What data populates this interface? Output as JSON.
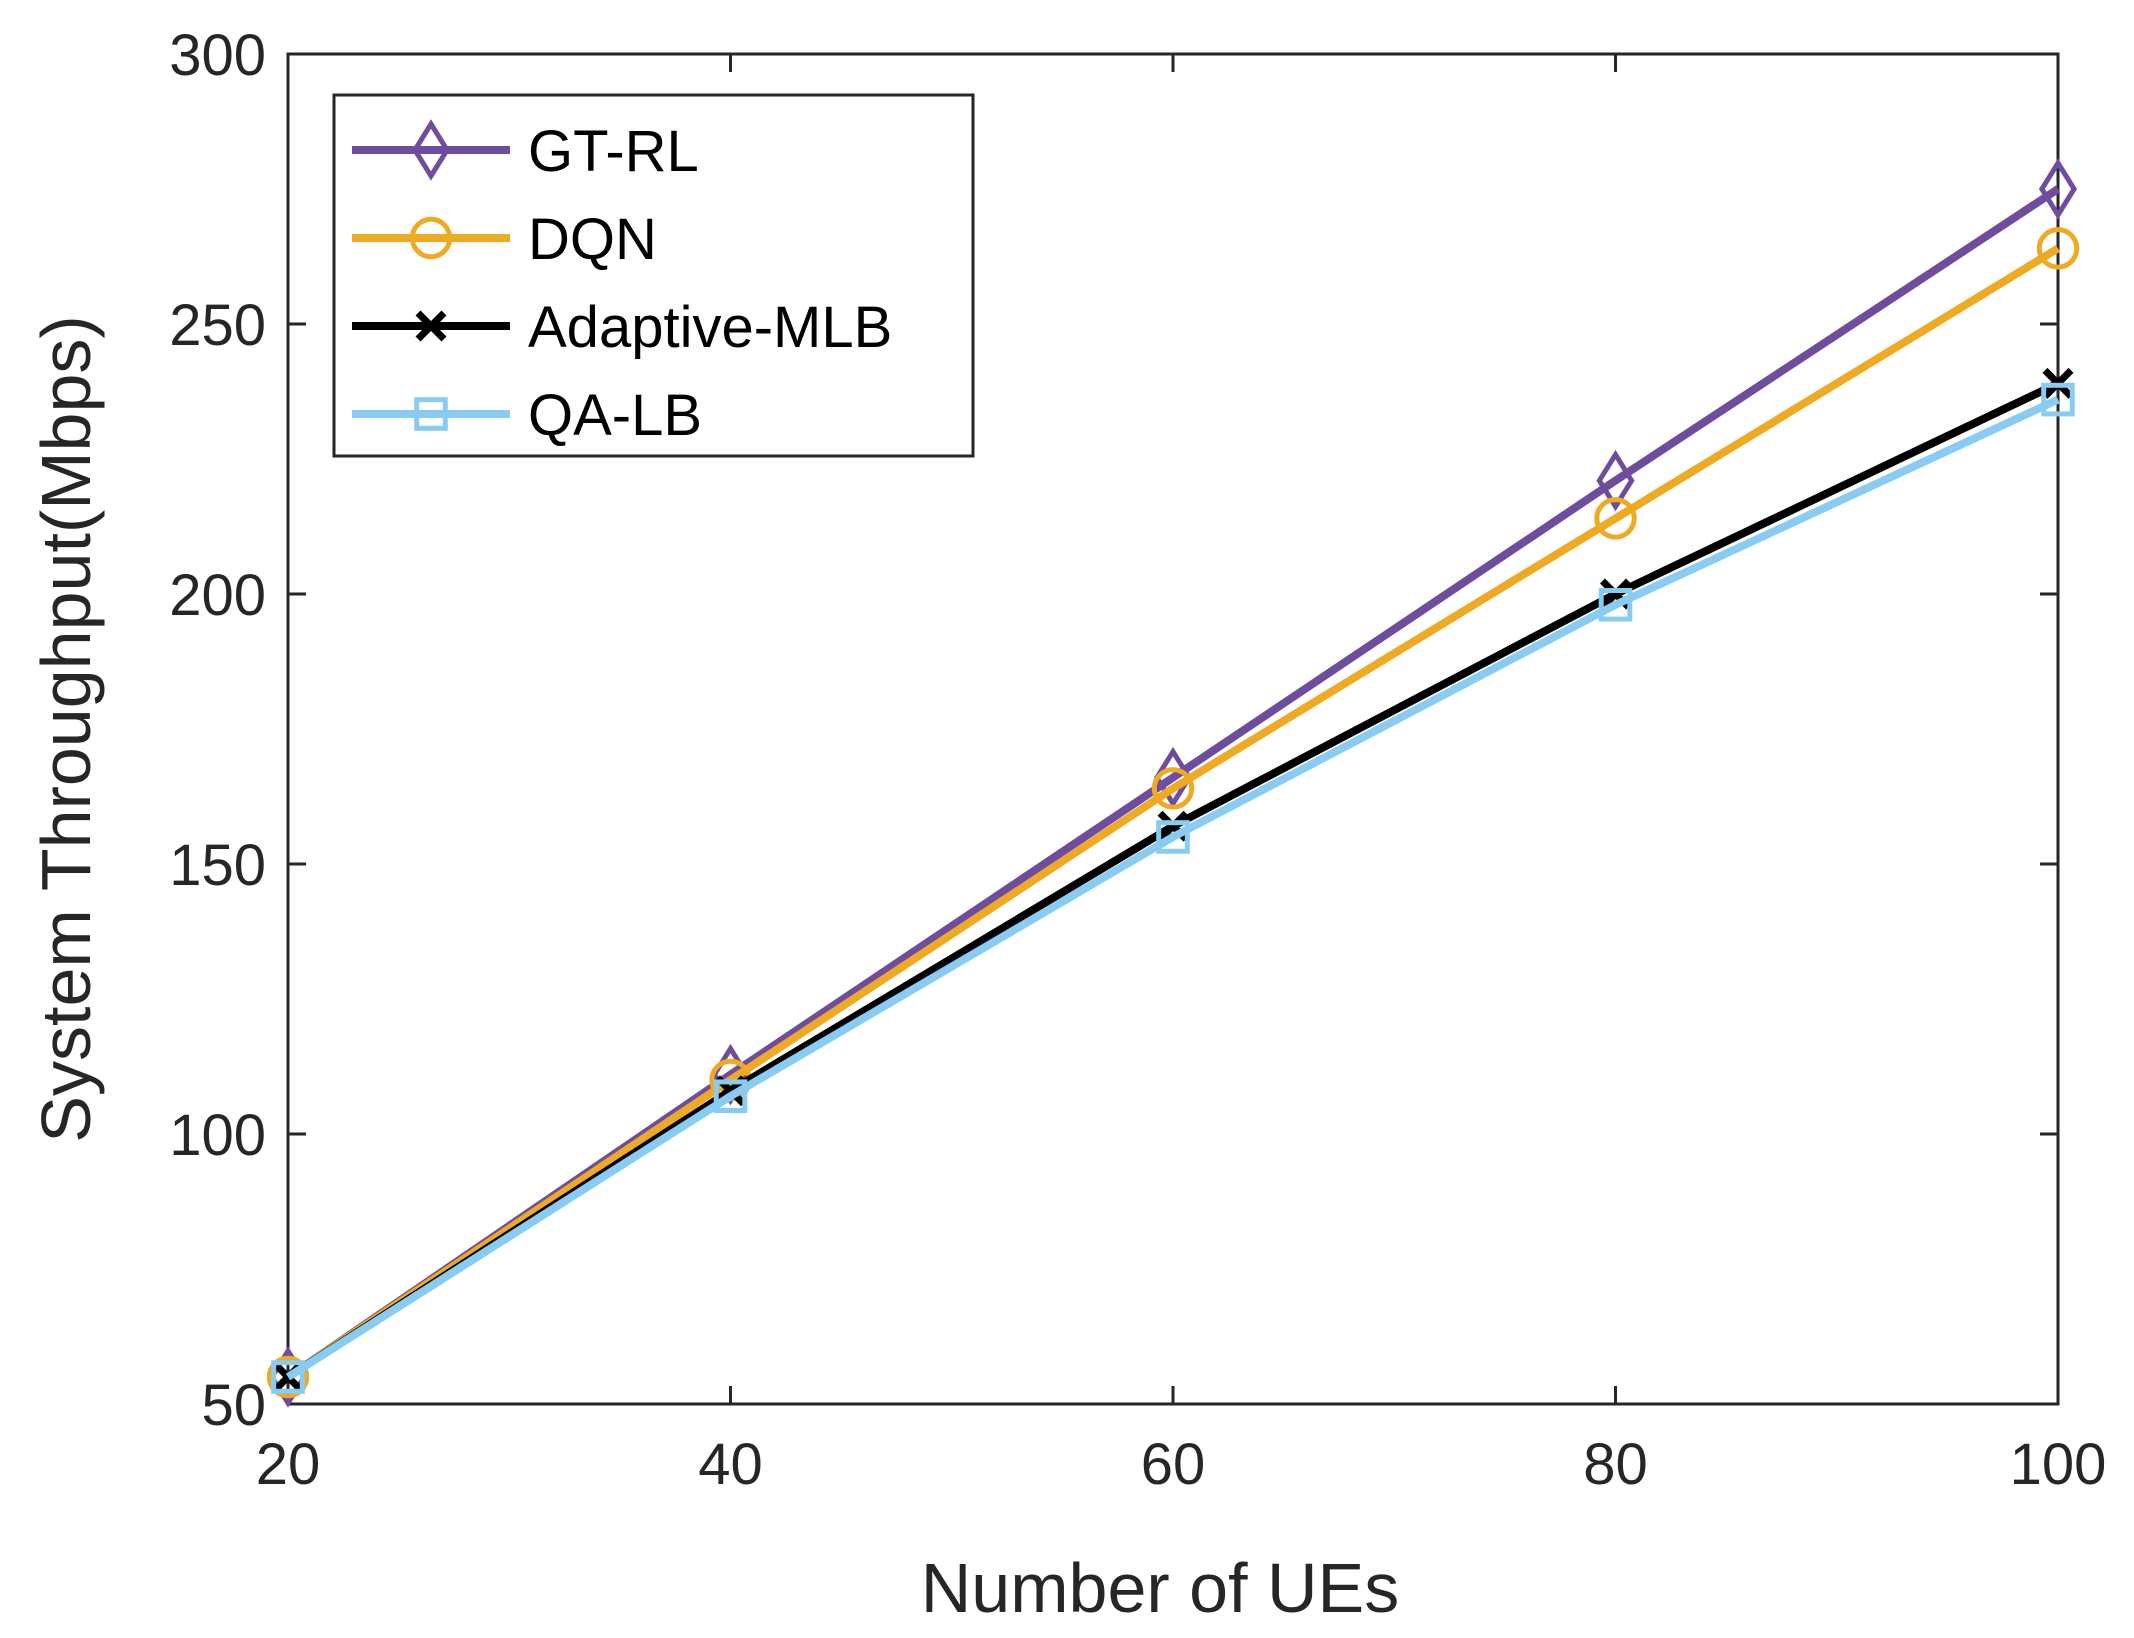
{
  "chart_data": {
    "type": "line",
    "title": "",
    "xlabel": "Number of UEs",
    "ylabel": "System Throughput(Mbps)",
    "x": [
      20,
      40,
      60,
      80,
      100
    ],
    "xlim": [
      20,
      100
    ],
    "ylim": [
      50,
      300
    ],
    "xticks": [
      "20",
      "40",
      "60",
      "80",
      "100"
    ],
    "yticks": [
      "50",
      "100",
      "150",
      "200",
      "250",
      "300"
    ],
    "grid": false,
    "legend_position": "top-left",
    "series": [
      {
        "name": "GT-RL",
        "values": [
          55,
          111,
          166,
          221,
          275
        ],
        "color": "#6e4c9e",
        "marker": "diamond"
      },
      {
        "name": "DQN",
        "values": [
          55,
          110,
          164,
          214,
          264
        ],
        "color": "#eeaa22",
        "marker": "circle"
      },
      {
        "name": "Adaptive-MLB",
        "values": [
          55,
          108,
          157,
          200,
          239
        ],
        "color": "#000000",
        "marker": "x"
      },
      {
        "name": "QA-LB",
        "values": [
          55,
          107,
          155,
          198,
          236
        ],
        "color": "#88ccf4",
        "marker": "square"
      }
    ]
  }
}
